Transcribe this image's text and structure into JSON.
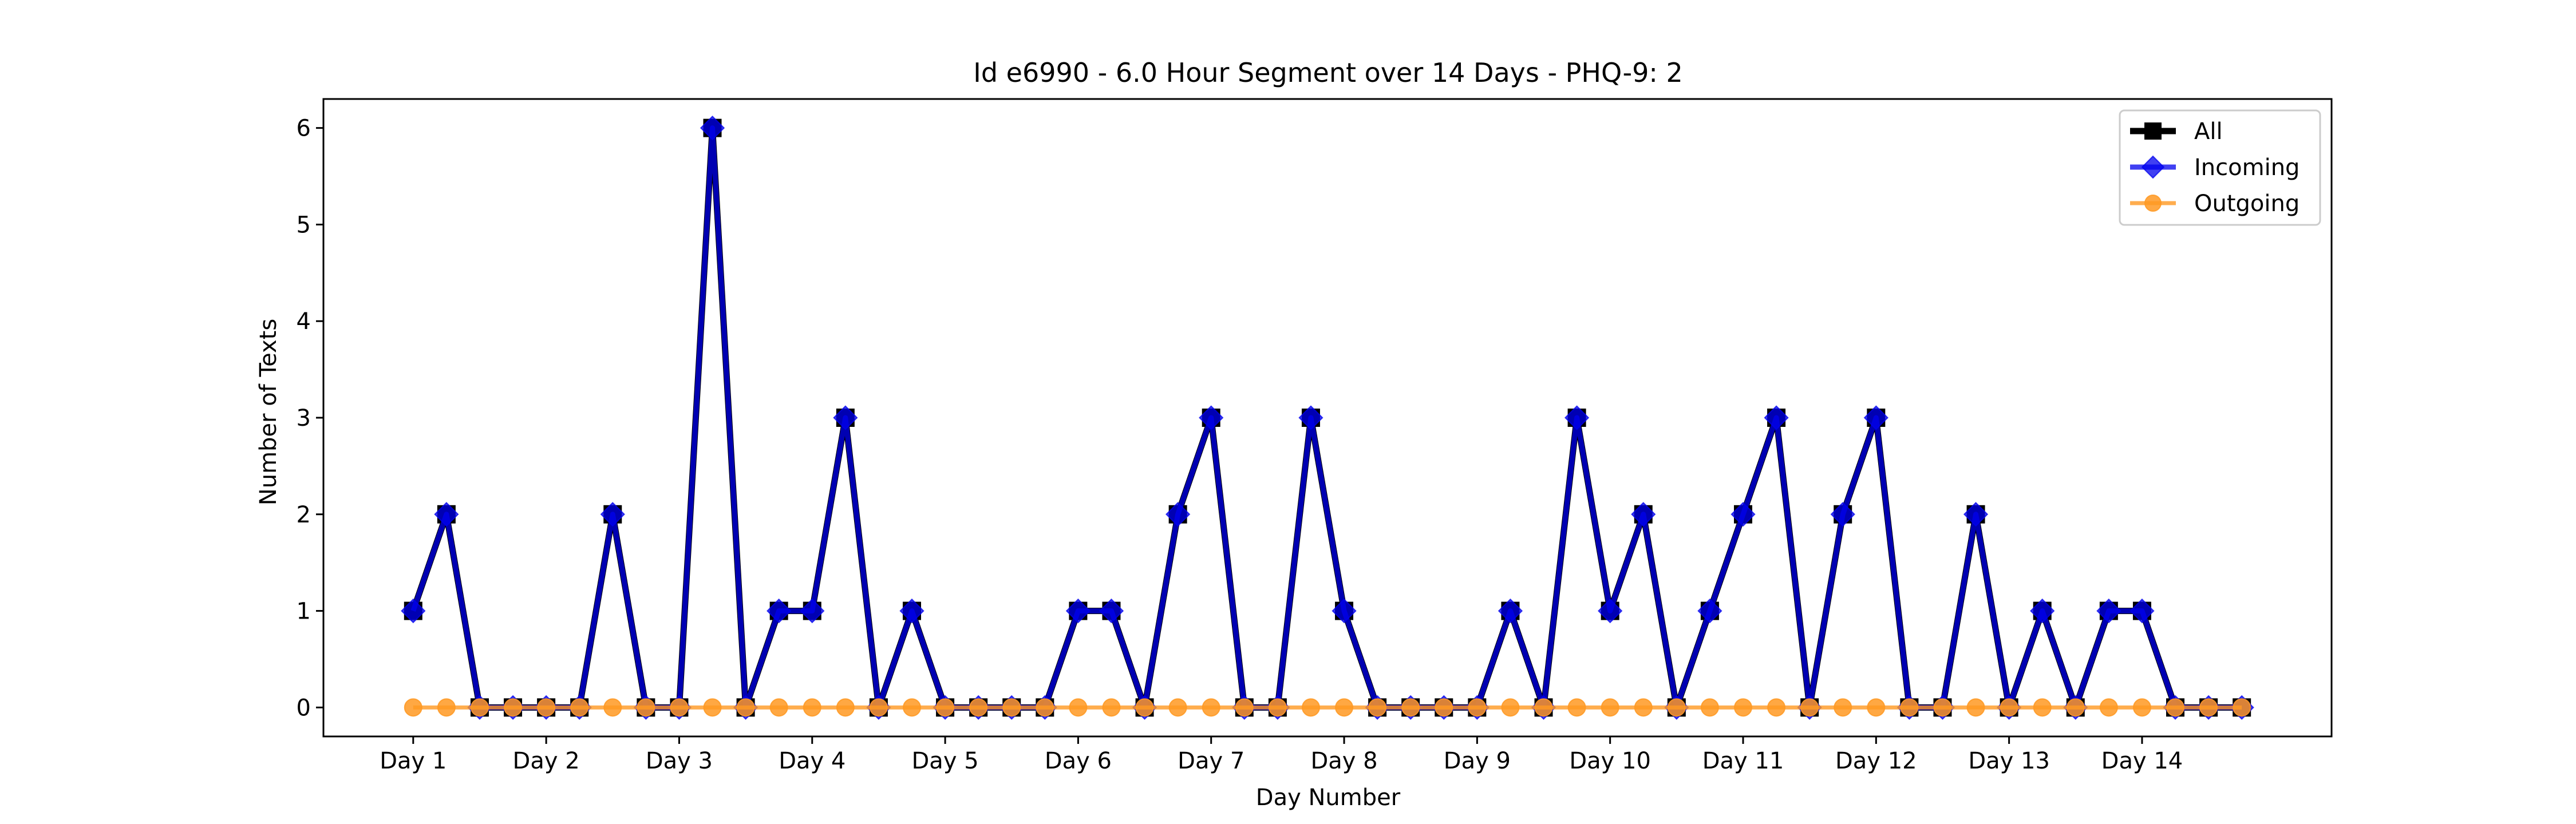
{
  "chart_data": {
    "type": "line",
    "title": "Id e6990 - 6.0 Hour Segment over 14 Days - PHQ-9: 2",
    "xlabel": "Day Number",
    "ylabel": "Number of Texts",
    "xtick_labels": [
      "Day 1",
      "Day 2",
      "Day 3",
      "Day 4",
      "Day 5",
      "Day 6",
      "Day 7",
      "Day 8",
      "Day 9",
      "Day 10",
      "Day 11",
      "Day 12",
      "Day 13",
      "Day 14"
    ],
    "yticks": [
      0,
      1,
      2,
      3,
      4,
      5,
      6
    ],
    "ylim": [
      -0.3,
      6.3
    ],
    "segments_per_day": 4,
    "grid": false,
    "legend_position": "top-right",
    "series": [
      {
        "name": "All",
        "color": "#000000",
        "marker": "square",
        "values": [
          1,
          2,
          0,
          0,
          0,
          0,
          2,
          0,
          0,
          6,
          0,
          1,
          1,
          3,
          0,
          1,
          0,
          0,
          0,
          0,
          1,
          1,
          0,
          2,
          3,
          0,
          0,
          3,
          1,
          0,
          0,
          0,
          0,
          1,
          0,
          3,
          1,
          2,
          0,
          1,
          2,
          3,
          0,
          2,
          3,
          0,
          0,
          2,
          0,
          1,
          0,
          1,
          1,
          0,
          0,
          0
        ]
      },
      {
        "name": "Incoming",
        "color": "#0000ee",
        "marker": "diamond",
        "values": [
          1,
          2,
          0,
          0,
          0,
          0,
          2,
          0,
          0,
          6,
          0,
          1,
          1,
          3,
          0,
          1,
          0,
          0,
          0,
          0,
          1,
          1,
          0,
          2,
          3,
          0,
          0,
          3,
          1,
          0,
          0,
          0,
          0,
          1,
          0,
          3,
          1,
          2,
          0,
          1,
          2,
          3,
          0,
          2,
          3,
          0,
          0,
          2,
          0,
          1,
          0,
          1,
          1,
          0,
          0,
          0
        ]
      },
      {
        "name": "Outgoing",
        "color": "#ff9922",
        "marker": "circle",
        "values": [
          0,
          0,
          0,
          0,
          0,
          0,
          0,
          0,
          0,
          0,
          0,
          0,
          0,
          0,
          0,
          0,
          0,
          0,
          0,
          0,
          0,
          0,
          0,
          0,
          0,
          0,
          0,
          0,
          0,
          0,
          0,
          0,
          0,
          0,
          0,
          0,
          0,
          0,
          0,
          0,
          0,
          0,
          0,
          0,
          0,
          0,
          0,
          0,
          0,
          0,
          0,
          0,
          0,
          0,
          0,
          0
        ]
      }
    ]
  }
}
